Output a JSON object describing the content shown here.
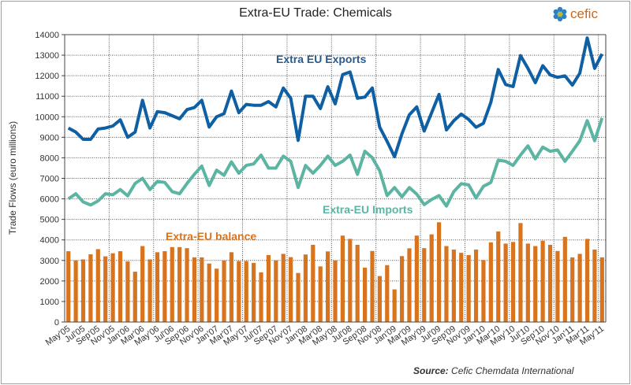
{
  "title": "Extra-EU Trade: Chemicals",
  "logo": {
    "text": "cefic",
    "icon": "cefic-flower-logo"
  },
  "source": {
    "label": "Source:",
    "text": "Cefic Chemdata International"
  },
  "colors": {
    "exports": "#0e5fa3",
    "imports": "#5cb5a2",
    "balance": "#d8741e"
  },
  "chart_data": {
    "type": "bar+line",
    "title": "Extra-EU Trade: Chemicals",
    "ylabel": "Trade Flows (euro millions)",
    "xlabel": "",
    "ylim": [
      0,
      14000
    ],
    "yticks": [
      0,
      1000,
      2000,
      3000,
      4000,
      5000,
      6000,
      7000,
      8000,
      9000,
      10000,
      11000,
      12000,
      13000,
      14000
    ],
    "grid": true,
    "xtick_labels": [
      "May'05",
      "Jul'05",
      "Sep'05",
      "Nov'05",
      "Jan'06",
      "Mar'06",
      "May'06",
      "Jul'06",
      "Sep'06",
      "Nov'06",
      "Jan'07",
      "Mar'07",
      "May'07",
      "Jul'07",
      "Sep'07",
      "Nov'07",
      "Jan'08",
      "Mar'08",
      "May'08",
      "Jul'08",
      "Sep'08",
      "Nov'08",
      "Jan'09",
      "Mar'09",
      "May'09",
      "Jul'09",
      "Sep'09",
      "Nov'09",
      "Jan'10",
      "Mar'10",
      "May'10",
      "Jul'10",
      "Sep'10",
      "Nov'10",
      "Jan'11",
      "Mar'11",
      "May'11"
    ],
    "series": [
      {
        "name": "Extra EU Exports",
        "type": "line",
        "values": [
          9450,
          9250,
          8900,
          8900,
          9400,
          9450,
          9550,
          9850,
          9000,
          9250,
          10800,
          9450,
          10250,
          10200,
          10050,
          9900,
          10350,
          10450,
          10800,
          9500,
          10000,
          10150,
          11250,
          10200,
          10600,
          10560,
          10560,
          10740,
          10480,
          11400,
          10900,
          8850,
          11000,
          11000,
          10400,
          11460,
          10630,
          12050,
          12180,
          10900,
          10960,
          11400,
          9490,
          8800,
          8050,
          9170,
          10100,
          10480,
          9300,
          10190,
          11090,
          9360,
          9810,
          10130,
          9870,
          9490,
          9680,
          10700,
          12300,
          11570,
          11470,
          12980,
          12360,
          11660,
          12490,
          12040,
          11920,
          11990,
          11540,
          12120,
          13840,
          12360,
          13060
        ]
      },
      {
        "name": "Extra-EU Imports",
        "type": "line",
        "values": [
          6000,
          6250,
          5850,
          5700,
          5900,
          6250,
          6200,
          6450,
          6150,
          6750,
          7000,
          6450,
          6850,
          6800,
          6350,
          6250,
          6750,
          7200,
          7600,
          6650,
          7400,
          7150,
          7800,
          7250,
          7630,
          7700,
          8130,
          7500,
          7500,
          8080,
          7830,
          6550,
          7630,
          7250,
          7630,
          8080,
          7630,
          7830,
          8130,
          7190,
          8320,
          8000,
          7370,
          6160,
          6550,
          6100,
          6550,
          6230,
          5720,
          5970,
          6160,
          5650,
          6360,
          6740,
          6680,
          6040,
          6610,
          6800,
          7890,
          7830,
          7630,
          8130,
          8580,
          7950,
          8520,
          8320,
          8380,
          7830,
          8320,
          8830,
          9810,
          8830,
          9940
        ]
      },
      {
        "name": "Extra-EU balance",
        "type": "bar",
        "values": [
          3450,
          3000,
          3050,
          3300,
          3550,
          3200,
          3350,
          3450,
          2950,
          2450,
          3700,
          3050,
          3400,
          3450,
          3650,
          3650,
          3600,
          3150,
          3150,
          2850,
          2600,
          3000,
          3400,
          2970,
          2970,
          2880,
          2420,
          3260,
          3000,
          3320,
          3160,
          2390,
          3290,
          3760,
          2710,
          3440,
          3000,
          4210,
          4050,
          3760,
          2650,
          3460,
          2240,
          2770,
          1590,
          3210,
          3590,
          4210,
          3600,
          4270,
          4860,
          3700,
          3530,
          3370,
          3260,
          3530,
          3020,
          3880,
          4410,
          3820,
          3900,
          4820,
          3820,
          3700,
          3960,
          3760,
          3460,
          4150,
          3150,
          3320,
          4050,
          3530,
          3150
        ]
      }
    ],
    "legend": "inline labels"
  }
}
